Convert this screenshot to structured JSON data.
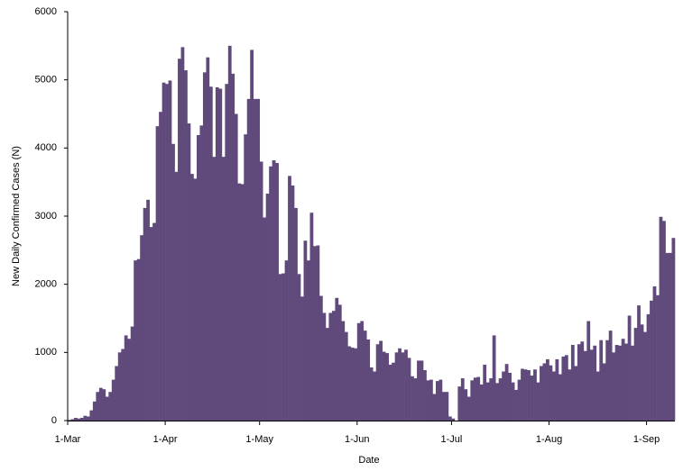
{
  "chart_data": {
    "type": "bar",
    "x_label": "Date",
    "y_label": "New Daily Confirmed Cases (N)",
    "color": "#604a7b",
    "ylim": [
      0,
      6000
    ],
    "yticks": [
      0,
      1000,
      2000,
      3000,
      4000,
      5000,
      6000
    ],
    "grid": false,
    "categories": [
      "1-Mar",
      null,
      null,
      null,
      null,
      null,
      null,
      null,
      null,
      null,
      null,
      null,
      null,
      null,
      null,
      null,
      null,
      null,
      null,
      null,
      null,
      null,
      null,
      null,
      null,
      null,
      null,
      null,
      null,
      null,
      null,
      "1-Apr",
      null,
      null,
      null,
      null,
      null,
      null,
      null,
      null,
      null,
      null,
      null,
      null,
      null,
      null,
      null,
      null,
      null,
      null,
      null,
      null,
      null,
      null,
      null,
      null,
      null,
      null,
      null,
      null,
      null,
      "1-May",
      null,
      null,
      null,
      null,
      null,
      null,
      null,
      null,
      null,
      null,
      null,
      null,
      null,
      null,
      null,
      null,
      null,
      null,
      null,
      null,
      null,
      null,
      null,
      null,
      null,
      null,
      null,
      null,
      null,
      null,
      "1-Jun",
      null,
      null,
      null,
      null,
      null,
      null,
      null,
      null,
      null,
      null,
      null,
      null,
      null,
      null,
      null,
      null,
      null,
      null,
      null,
      null,
      null,
      null,
      null,
      null,
      null,
      null,
      null,
      null,
      null,
      "1-Jul",
      null,
      null,
      null,
      null,
      null,
      null,
      null,
      null,
      null,
      null,
      null,
      null,
      null,
      null,
      null,
      null,
      null,
      null,
      null,
      null,
      null,
      null,
      null,
      null,
      null,
      null,
      null,
      null,
      null,
      null,
      "1-Aug",
      null,
      null,
      null,
      null,
      null,
      null,
      null,
      null,
      null,
      null,
      null,
      null,
      null,
      null,
      null,
      null,
      null,
      null,
      null,
      null,
      null,
      null,
      null,
      null,
      null,
      null,
      null,
      null,
      null,
      null,
      "1-Sep",
      null,
      null,
      null,
      null,
      null,
      null,
      null,
      null
    ],
    "values": [
      10,
      20,
      40,
      30,
      40,
      70,
      60,
      150,
      280,
      420,
      480,
      460,
      350,
      420,
      600,
      800,
      1000,
      1050,
      1250,
      1200,
      1380,
      2350,
      2370,
      2720,
      3120,
      3240,
      2840,
      2900,
      4320,
      4530,
      4960,
      4940,
      4990,
      4060,
      3650,
      5310,
      5480,
      5140,
      4360,
      3620,
      3550,
      4190,
      4330,
      5110,
      5330,
      4900,
      3870,
      4890,
      4870,
      3870,
      4940,
      5500,
      5090,
      4500,
      3480,
      3470,
      4200,
      4720,
      5440,
      4720,
      4720,
      3800,
      2980,
      3330,
      3730,
      3820,
      3780,
      2150,
      2160,
      2350,
      3590,
      3450,
      3120,
      2150,
      1820,
      2640,
      2350,
      3050,
      2560,
      2570,
      1830,
      1580,
      1360,
      1580,
      1610,
      1800,
      1700,
      1460,
      1300,
      1090,
      1070,
      1060,
      1430,
      1460,
      1320,
      1190,
      780,
      720,
      1120,
      1170,
      1010,
      990,
      820,
      850,
      1000,
      1060,
      1000,
      1040,
      920,
      650,
      620,
      880,
      880,
      740,
      590,
      600,
      390,
      580,
      600,
      420,
      420,
      60,
      30,
      0,
      500,
      620,
      460,
      350,
      590,
      630,
      640,
      530,
      820,
      560,
      620,
      1250,
      550,
      620,
      720,
      830,
      700,
      560,
      450,
      600,
      760,
      750,
      740,
      660,
      750,
      560,
      800,
      840,
      900,
      810,
      720,
      900,
      680,
      940,
      960,
      750,
      1110,
      800,
      1120,
      1160,
      1020,
      1460,
      1040,
      1100,
      720,
      1180,
      840,
      1180,
      1320,
      1000,
      1110,
      1100,
      1200,
      1130,
      1540,
      1100,
      1360,
      1690,
      1410,
      1300,
      1560,
      1760,
      1970,
      1840,
      2990,
      2930,
      2460,
      2460,
      2680
    ]
  }
}
